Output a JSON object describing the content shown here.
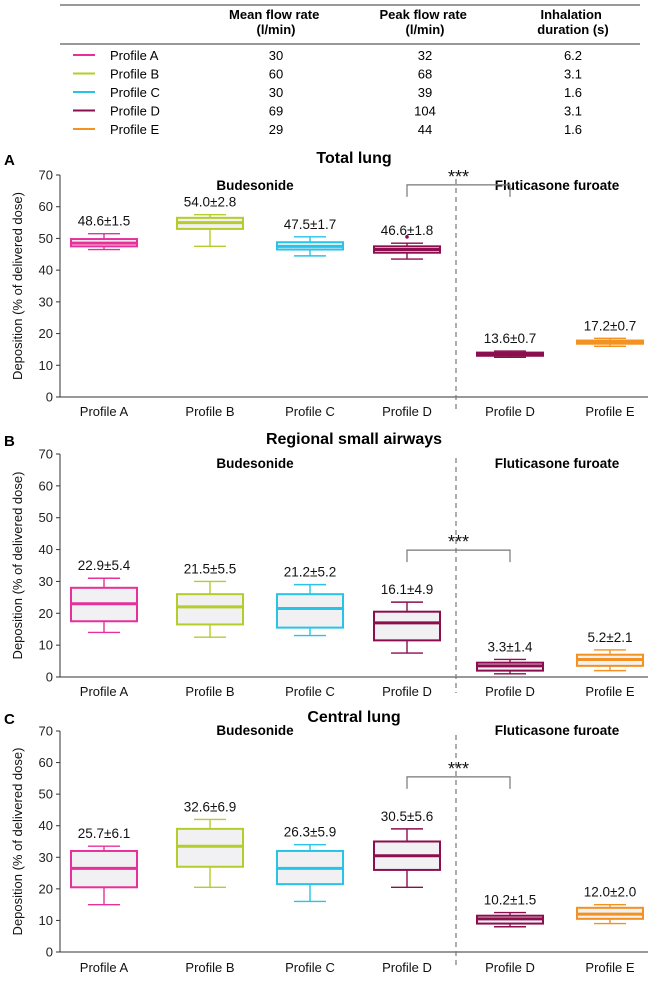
{
  "table": {
    "headers": [
      "Mean flow rate (l/min)",
      "Peak flow rate (l/min)",
      "Inhalation duration (s)"
    ],
    "header_lines": [
      [
        "Mean flow rate",
        "(l/min)"
      ],
      [
        "Peak flow rate",
        "(l/min)"
      ],
      [
        "Inhalation",
        "duration (s)"
      ]
    ],
    "rows": [
      {
        "profile": "Profile A",
        "color": "#e8309a",
        "mean": "30",
        "peak": "32",
        "duration": "6.2"
      },
      {
        "profile": "Profile B",
        "color": "#b5cc2a",
        "mean": "60",
        "peak": "68",
        "duration": "3.1"
      },
      {
        "profile": "Profile C",
        "color": "#27c4e8",
        "mean": "30",
        "peak": "39",
        "duration": "1.6"
      },
      {
        "profile": "Profile D",
        "color": "#8b0e4e",
        "mean": "69",
        "peak": "104",
        "duration": "3.1"
      },
      {
        "profile": "Profile E",
        "color": "#f39221",
        "mean": "29",
        "peak": "44",
        "duration": "1.6"
      }
    ]
  },
  "chart_data": [
    {
      "type": "box",
      "panel": "A",
      "title": "Total lung",
      "ylabel": "Deposition (% of delivered dose)",
      "ylim": [
        0,
        70
      ],
      "yticks": [
        0,
        10,
        20,
        30,
        40,
        50,
        60,
        70
      ],
      "group_labels": [
        "Budesonide",
        "Fluticasone furoate"
      ],
      "significance": "***",
      "categories": [
        "Profile A",
        "Profile B",
        "Profile C",
        "Profile D",
        "Profile D",
        "Profile E"
      ],
      "boxes": [
        {
          "category": "Profile A",
          "group": "Budesonide",
          "color": "#e8309a",
          "min": 46.5,
          "q1": 47.5,
          "median": 48.5,
          "q3": 49.8,
          "max": 51.5,
          "label": "48.6±1.5",
          "outliers": []
        },
        {
          "category": "Profile B",
          "group": "Budesonide",
          "color": "#b5cc2a",
          "min": 47.5,
          "q1": 53.0,
          "median": 55.0,
          "q3": 56.5,
          "max": 57.5,
          "label": "54.0±2.8",
          "outliers": []
        },
        {
          "category": "Profile C",
          "group": "Budesonide",
          "color": "#27c4e8",
          "min": 44.5,
          "q1": 46.5,
          "median": 47.5,
          "q3": 48.8,
          "max": 50.5,
          "label": "47.5±1.7",
          "outliers": []
        },
        {
          "category": "Profile D",
          "group": "Budesonide",
          "color": "#8b0e4e",
          "min": 43.5,
          "q1": 45.5,
          "median": 46.5,
          "q3": 47.5,
          "max": 48.5,
          "label": "46.6±1.8",
          "outliers": [
            50.5
          ]
        },
        {
          "category": "Profile D",
          "group": "Fluticasone furoate",
          "color": "#8b0e4e",
          "min": 12.5,
          "q1": 13.0,
          "median": 13.5,
          "q3": 14.0,
          "max": 14.5,
          "label": "13.6±0.7",
          "outliers": []
        },
        {
          "category": "Profile E",
          "group": "Fluticasone furoate",
          "color": "#f39221",
          "min": 16.0,
          "q1": 16.8,
          "median": 17.2,
          "q3": 17.8,
          "max": 18.5,
          "label": "17.2±0.7",
          "outliers": []
        }
      ]
    },
    {
      "type": "box",
      "panel": "B",
      "title": "Regional small airways",
      "ylabel": "Deposition (% of delivered dose)",
      "ylim": [
        0,
        70
      ],
      "yticks": [
        0,
        10,
        20,
        30,
        40,
        50,
        60,
        70
      ],
      "group_labels": [
        "Budesonide",
        "Fluticasone furoate"
      ],
      "significance": "***",
      "categories": [
        "Profile A",
        "Profile B",
        "Profile C",
        "Profile D",
        "Profile D",
        "Profile E"
      ],
      "boxes": [
        {
          "category": "Profile A",
          "group": "Budesonide",
          "color": "#e8309a",
          "min": 14.0,
          "q1": 17.5,
          "median": 23.0,
          "q3": 28.0,
          "max": 31.0,
          "label": "22.9±5.4",
          "outliers": []
        },
        {
          "category": "Profile B",
          "group": "Budesonide",
          "color": "#b5cc2a",
          "min": 12.5,
          "q1": 16.5,
          "median": 22.0,
          "q3": 26.0,
          "max": 30.0,
          "label": "21.5±5.5",
          "outliers": []
        },
        {
          "category": "Profile C",
          "group": "Budesonide",
          "color": "#27c4e8",
          "min": 13.0,
          "q1": 15.5,
          "median": 21.5,
          "q3": 26.0,
          "max": 29.0,
          "label": "21.2±5.2",
          "outliers": []
        },
        {
          "category": "Profile D",
          "group": "Budesonide",
          "color": "#8b0e4e",
          "min": 7.5,
          "q1": 11.5,
          "median": 17.0,
          "q3": 20.5,
          "max": 23.5,
          "label": "16.1±4.9",
          "outliers": []
        },
        {
          "category": "Profile D",
          "group": "Fluticasone furoate",
          "color": "#8b0e4e",
          "min": 1.0,
          "q1": 2.0,
          "median": 3.5,
          "q3": 4.5,
          "max": 5.5,
          "label": "3.3±1.4",
          "outliers": []
        },
        {
          "category": "Profile E",
          "group": "Fluticasone furoate",
          "color": "#f39221",
          "min": 2.0,
          "q1": 3.5,
          "median": 5.5,
          "q3": 7.0,
          "max": 8.5,
          "label": "5.2±2.1",
          "outliers": []
        }
      ]
    },
    {
      "type": "box",
      "panel": "C",
      "title": "Central lung",
      "ylabel": "Deposition (% of delivered dose)",
      "ylim": [
        0,
        70
      ],
      "yticks": [
        0,
        10,
        20,
        30,
        40,
        50,
        60,
        70
      ],
      "group_labels": [
        "Budesonide",
        "Fluticasone furoate"
      ],
      "significance": "***",
      "categories": [
        "Profile A",
        "Profile B",
        "Profile C",
        "Profile D",
        "Profile D",
        "Profile E"
      ],
      "boxes": [
        {
          "category": "Profile A",
          "group": "Budesonide",
          "color": "#e8309a",
          "min": 15.0,
          "q1": 20.5,
          "median": 26.5,
          "q3": 32.0,
          "max": 33.5,
          "label": "25.7±6.1",
          "outliers": []
        },
        {
          "category": "Profile B",
          "group": "Budesonide",
          "color": "#b5cc2a",
          "min": 20.5,
          "q1": 27.0,
          "median": 33.5,
          "q3": 39.0,
          "max": 42.0,
          "label": "32.6±6.9",
          "outliers": []
        },
        {
          "category": "Profile C",
          "group": "Budesonide",
          "color": "#27c4e8",
          "min": 16.0,
          "q1": 21.5,
          "median": 26.5,
          "q3": 32.0,
          "max": 34.0,
          "label": "26.3±5.9",
          "outliers": []
        },
        {
          "category": "Profile D",
          "group": "Budesonide",
          "color": "#8b0e4e",
          "min": 20.5,
          "q1": 26.0,
          "median": 30.5,
          "q3": 35.0,
          "max": 39.0,
          "label": "30.5±5.6",
          "outliers": []
        },
        {
          "category": "Profile D",
          "group": "Fluticasone furoate",
          "color": "#8b0e4e",
          "min": 8.0,
          "q1": 9.0,
          "median": 10.5,
          "q3": 11.5,
          "max": 12.5,
          "label": "10.2±1.5",
          "outliers": []
        },
        {
          "category": "Profile E",
          "group": "Fluticasone furoate",
          "color": "#f39221",
          "min": 9.0,
          "q1": 10.5,
          "median": 12.0,
          "q3": 14.0,
          "max": 15.0,
          "label": "12.0±2.0",
          "outliers": []
        }
      ]
    }
  ]
}
